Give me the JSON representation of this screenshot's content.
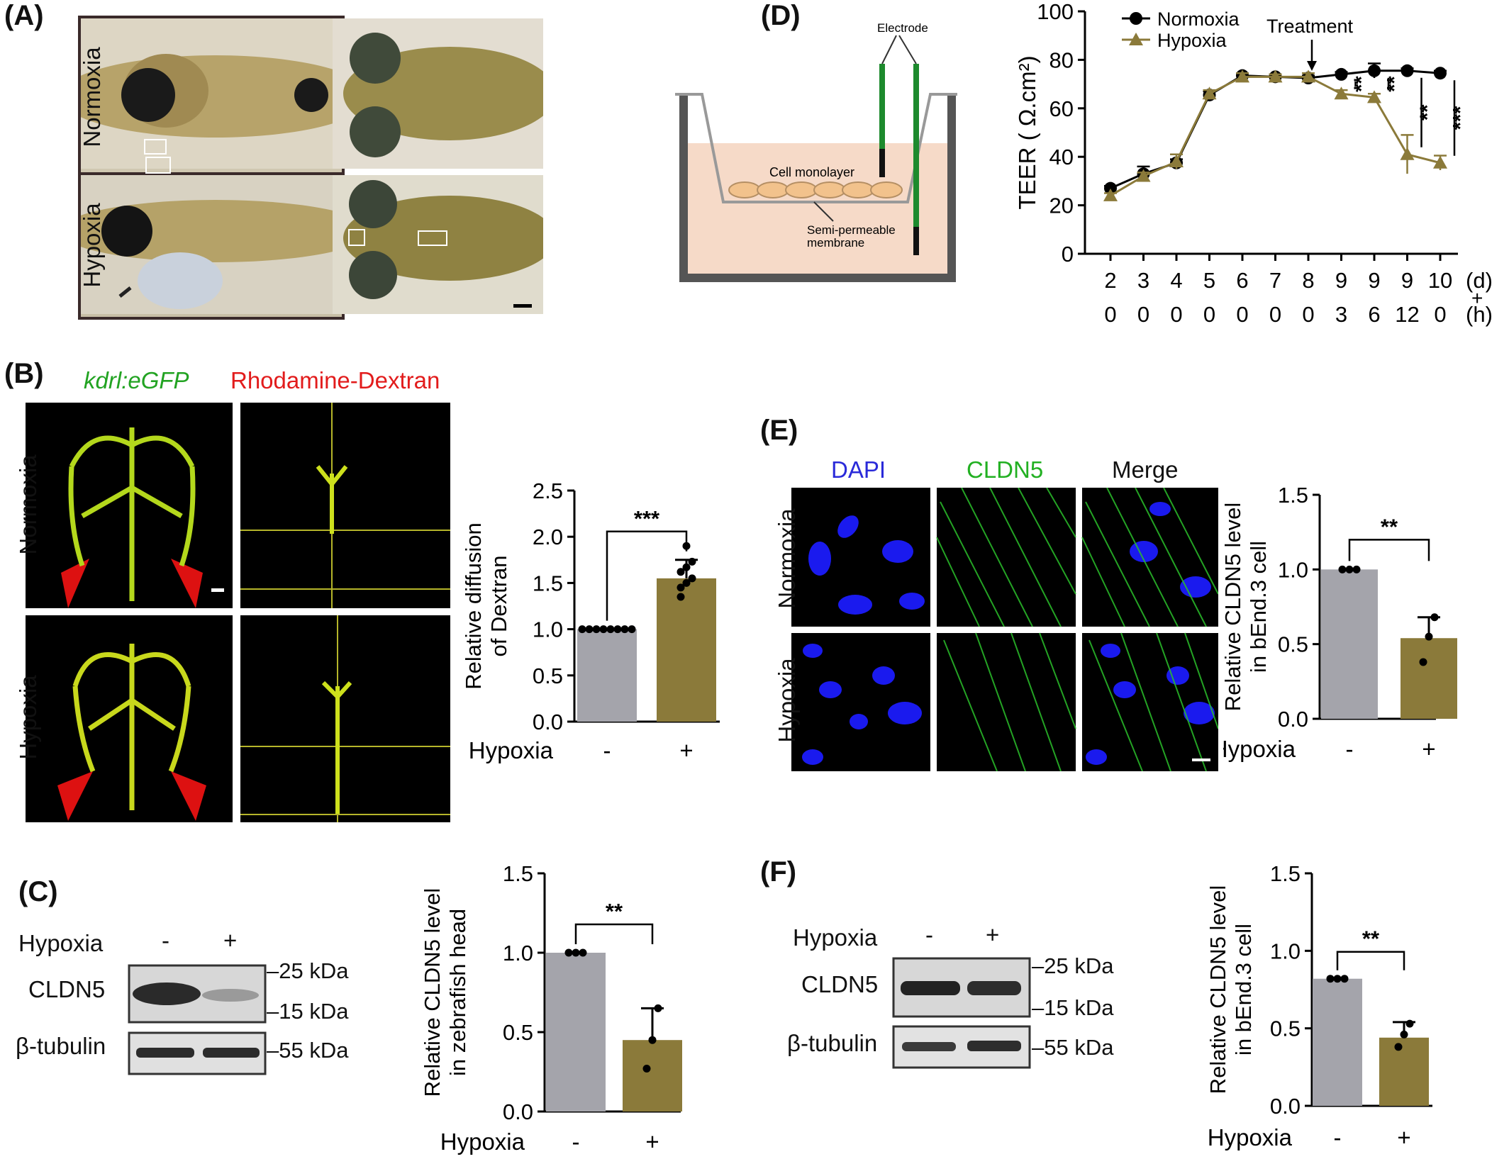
{
  "panels": {
    "A": {
      "label": "(A)",
      "rows": [
        "Normoxia",
        "Hypoxia"
      ]
    },
    "B": {
      "label": "(B)",
      "channel1": "kdrl:eGFP",
      "channel2": "Rhodamine-Dextran",
      "rows": [
        "Normoxia",
        "Hypoxia"
      ]
    },
    "C": {
      "label": "(C)",
      "condition": "Hypoxia",
      "minus": "-",
      "plus": "+",
      "band1": "CLDN5",
      "band2": "β-tubulin",
      "markers": [
        "25 kDa",
        "15 kDa",
        "55 kDa"
      ]
    },
    "D": {
      "label": "(D)",
      "schematic": {
        "electrode": "Electrode",
        "monolayer": "Cell monolayer",
        "membrane1": "Semi-permeable",
        "membrane2": "membrane"
      },
      "treatment": "Treatment",
      "day_unit": "(d)",
      "plus_sign": "+",
      "hour_unit": "(h)"
    },
    "E": {
      "label": "(E)",
      "columns": [
        "DAPI",
        "CLDN5",
        "Merge"
      ],
      "rows": [
        "Normoxia",
        "Hypoxia"
      ]
    },
    "F": {
      "label": "(F)",
      "condition": "Hypoxia",
      "minus": "-",
      "plus": "+",
      "band1": "CLDN5",
      "band2": "β-tubulin",
      "markers": [
        "25 kDa",
        "15 kDa",
        "55 kDa"
      ]
    }
  },
  "colors": {
    "normoxia": "#a4a4ab",
    "hypoxia": "#8b7a3a",
    "line_normoxia": "#000000",
    "line_hypoxia": "#8b7a3a",
    "dapi": "#2a2ad9",
    "cldn5": "#22b022",
    "rhodamine": "#e21c1c"
  },
  "chart_data": [
    {
      "id": "D",
      "type": "line",
      "x_day": [
        "2",
        "3",
        "4",
        "5",
        "6",
        "7",
        "8",
        "9",
        "9",
        "9",
        "10"
      ],
      "x_hour": [
        "0",
        "0",
        "0",
        "0",
        "0",
        "0",
        "0",
        "3",
        "6",
        "12",
        "0"
      ],
      "ylabel": "TEER ( Ω.cm²)",
      "ylim": [
        0,
        100
      ],
      "yticks": [
        0,
        20,
        40,
        60,
        80,
        100
      ],
      "legend_position": "top-left",
      "series": [
        {
          "name": "Normoxia",
          "values": [
            27,
            33,
            37.5,
            65.5,
            73.5,
            73,
            72.5,
            74,
            75.5,
            75.5,
            74.5
          ],
          "errors": [
            1,
            3,
            1.5,
            1.5,
            1,
            1,
            1,
            1,
            3,
            1,
            1
          ]
        },
        {
          "name": "Hypoxia",
          "values": [
            24,
            32,
            38,
            66,
            73,
            73,
            73,
            66,
            64.5,
            41,
            37.5
          ],
          "errors": [
            1,
            1.5,
            3,
            1.5,
            1.5,
            1,
            1.5,
            1.5,
            1.5,
            8,
            3
          ]
        }
      ],
      "significance": [
        "**",
        "**",
        "**",
        "***"
      ]
    },
    {
      "id": "B",
      "type": "bar",
      "categories": [
        "-",
        "+"
      ],
      "xlabel": "Hypoxia",
      "ylabel_lines": [
        "Relative diffusion",
        "of Dextran"
      ],
      "values": [
        1.0,
        1.55
      ],
      "errors": [
        0,
        0.2
      ],
      "ylim": [
        0,
        2.5
      ],
      "yticks": [
        "0.0",
        "0.5",
        "1.0",
        "1.5",
        "2.0",
        "2.5"
      ],
      "points": [
        [
          1,
          1,
          1,
          1,
          1,
          1,
          1,
          1
        ],
        [
          1.45,
          1.5,
          1.55,
          1.62,
          1.67,
          1.73,
          1.35,
          1.9
        ]
      ],
      "significance": "***"
    },
    {
      "id": "E",
      "type": "bar",
      "categories": [
        "-",
        "+"
      ],
      "xlabel": "Hypoxia",
      "ylabel_lines": [
        "Relative CLDN5 level",
        "in bEnd.3 cell"
      ],
      "values": [
        1.0,
        0.54
      ],
      "errors": [
        0,
        0.14
      ],
      "ylim": [
        0,
        1.5
      ],
      "yticks": [
        "0.0",
        "0.5",
        "1.0",
        "1.5"
      ],
      "points": [
        [
          1,
          1,
          1
        ],
        [
          0.38,
          0.55,
          0.68
        ]
      ],
      "significance": "**"
    },
    {
      "id": "C",
      "type": "bar",
      "categories": [
        "-",
        "+"
      ],
      "xlabel": "Hypoxia",
      "ylabel_lines": [
        "Relative CLDN5 level",
        "in zebrafish head"
      ],
      "values": [
        1.0,
        0.45
      ],
      "errors": [
        0,
        0.2
      ],
      "ylim": [
        0,
        1.5
      ],
      "yticks": [
        "0.0",
        "0.5",
        "1.0",
        "1.5"
      ],
      "points": [
        [
          1,
          1,
          1
        ],
        [
          0.27,
          0.45,
          0.65
        ]
      ],
      "significance": "**"
    },
    {
      "id": "F",
      "type": "bar",
      "categories": [
        "-",
        "+"
      ],
      "xlabel": "Hypoxia",
      "ylabel_lines": [
        "Relative CLDN5 level",
        "in bEnd.3 cell"
      ],
      "values": [
        0.82,
        0.44
      ],
      "errors": [
        0,
        0.1
      ],
      "ylim": [
        0,
        1.5
      ],
      "yticks": [
        "0.0",
        "0.5",
        "1.0",
        "1.5"
      ],
      "points": [
        [
          0.82,
          0.82,
          0.82
        ],
        [
          0.38,
          0.46,
          0.53
        ]
      ],
      "significance": "**"
    }
  ]
}
